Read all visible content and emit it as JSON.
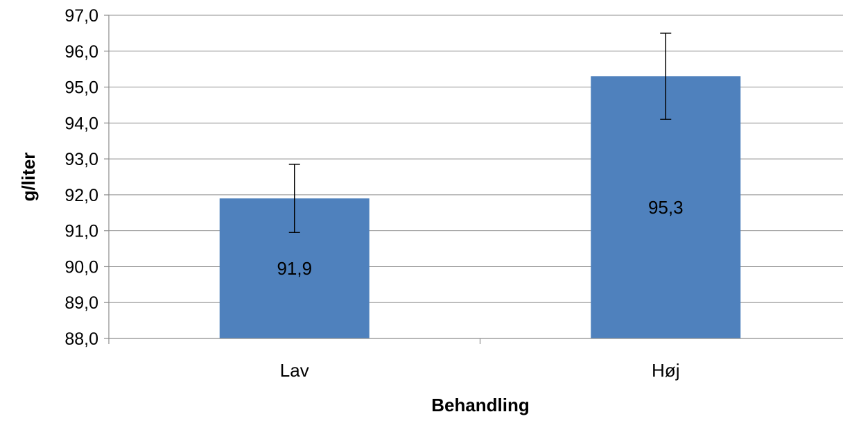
{
  "chart_data": {
    "type": "bar",
    "categories": [
      "Lav",
      "Høj"
    ],
    "series": [
      {
        "values": [
          91.9,
          95.3
        ],
        "error": [
          0.95,
          1.2
        ],
        "color": "#4f81bd"
      }
    ],
    "data_labels": [
      "91,9",
      "95,3"
    ],
    "xlabel": "Behandling",
    "ylabel": "g/liter",
    "ylim": [
      88.0,
      97.0
    ],
    "yticks": [
      88.0,
      89.0,
      90.0,
      91.0,
      92.0,
      93.0,
      94.0,
      95.0,
      96.0,
      97.0
    ],
    "ytick_labels": [
      "88,0",
      "89,0",
      "90,0",
      "91,0",
      "92,0",
      "93,0",
      "94,0",
      "95,0",
      "96,0",
      "97,0"
    ],
    "grid": true,
    "legend": "none"
  }
}
